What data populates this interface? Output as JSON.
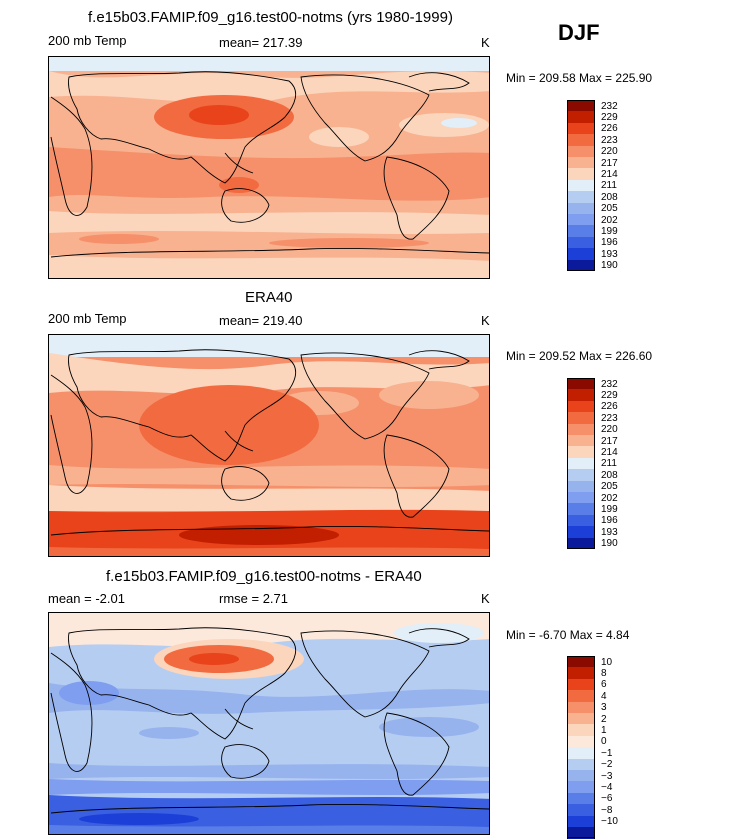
{
  "season": "DJF",
  "panels": [
    {
      "title": "f.e15b03.FAMIP.f09_g16.test00-notms (yrs 1980-1999)",
      "left_label": "200 mb Temp",
      "center_label": "mean= 217.39",
      "right_label": "K",
      "minmax": "Min = 209.58  Max = 225.90",
      "palette": "abs"
    },
    {
      "title": "ERA40",
      "left_label": "200 mb Temp",
      "center_label": "mean= 219.40",
      "right_label": "K",
      "minmax": "Min = 209.52  Max = 226.60",
      "palette": "abs"
    },
    {
      "title": "f.e15b03.FAMIP.f09_g16.test00-notms - ERA40",
      "left_label": "mean =   -2.01",
      "center_label": "rmse =    2.71",
      "right_label": "K",
      "minmax": "Min =  -6.70  Max =    4.84",
      "palette": "diff"
    }
  ],
  "colorbars": {
    "abs": {
      "labels": [
        "232",
        "229",
        "226",
        "223",
        "220",
        "217",
        "214",
        "211",
        "208",
        "205",
        "202",
        "199",
        "196",
        "193",
        "190"
      ],
      "colors": [
        "#8a0a00",
        "#c21e00",
        "#e8431a",
        "#f26a3f",
        "#f5906a",
        "#f8b290",
        "#fbd5bc",
        "#e2eef8",
        "#b6cdf2",
        "#96b3ee",
        "#7f9ef0",
        "#5a7ee8",
        "#3a5fe0",
        "#1c3fd8",
        "#0a1a9a"
      ]
    },
    "diff": {
      "labels": [
        "10",
        "8",
        "6",
        "4",
        "3",
        "2",
        "1",
        "0",
        "−1",
        "−2",
        "−3",
        "−4",
        "−6",
        "−8",
        "−10"
      ],
      "colors": [
        "#8a0a00",
        "#c21e00",
        "#e8431a",
        "#f26a3f",
        "#f5906a",
        "#f8b290",
        "#fbd5bc",
        "#fde9dc",
        "#e2eef8",
        "#b6cdf2",
        "#96b3ee",
        "#7f9ef0",
        "#5a7ee8",
        "#3a5fe0",
        "#1c3fd8",
        "#0a1a9a"
      ]
    }
  },
  "colors": {
    "map_bg": "#f8b290",
    "land_outline": "#000000"
  }
}
